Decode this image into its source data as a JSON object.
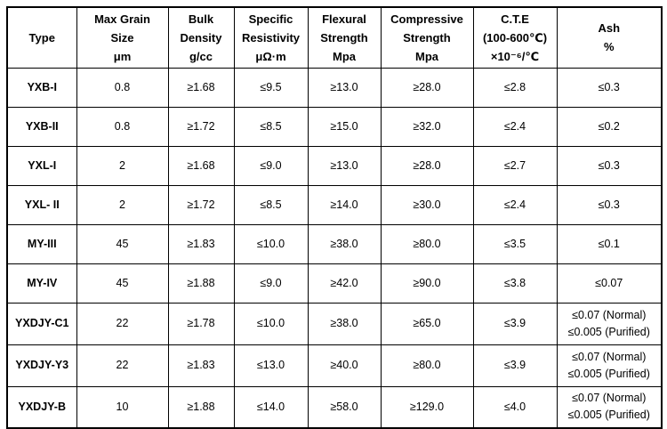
{
  "chart_data": {
    "type": "table",
    "title": "",
    "grid": "on",
    "columns": [
      {
        "id": "type",
        "label": "Type",
        "lines": [
          "Type"
        ]
      },
      {
        "id": "max_grain_size",
        "label": "Max Grain Size μm",
        "lines": [
          "Max Grain",
          "Size",
          "μm"
        ]
      },
      {
        "id": "bulk_density",
        "label": "Bulk Density g/cc",
        "lines": [
          "Bulk",
          "Density",
          "g/cc"
        ]
      },
      {
        "id": "specific_resistivity",
        "label": "Specific Resistivity μΩ·m",
        "lines": [
          "Specific",
          "Resistivity",
          "μΩ·m"
        ]
      },
      {
        "id": "flexural_strength",
        "label": "Flexural Strength Mpa",
        "lines": [
          "Flexural",
          "Strength",
          "Mpa"
        ]
      },
      {
        "id": "compressive_strength",
        "label": "Compressive Strength Mpa",
        "lines": [
          "Compressive",
          "Strength",
          "Mpa"
        ]
      },
      {
        "id": "cte",
        "label": "C.T.E (100-600℃) ×10⁻⁶/℃",
        "lines": [
          "C.T.E",
          "(100-600℃)",
          "×10⁻⁶/℃"
        ]
      },
      {
        "id": "ash",
        "label": "Ash %",
        "lines": [
          "Ash",
          "%"
        ]
      }
    ],
    "rows": [
      {
        "cells": [
          [
            "YXB-I"
          ],
          [
            "0.8"
          ],
          [
            "≥1.68"
          ],
          [
            "≤9.5"
          ],
          [
            "≥13.0"
          ],
          [
            "≥28.0"
          ],
          [
            "≤2.8"
          ],
          [
            "≤0.3"
          ]
        ]
      },
      {
        "cells": [
          [
            "YXB-II"
          ],
          [
            "0.8"
          ],
          [
            "≥1.72"
          ],
          [
            "≤8.5"
          ],
          [
            "≥15.0"
          ],
          [
            "≥32.0"
          ],
          [
            "≤2.4"
          ],
          [
            "≤0.2"
          ]
        ]
      },
      {
        "cells": [
          [
            "YXL-I"
          ],
          [
            "2"
          ],
          [
            "≥1.68"
          ],
          [
            "≤9.0"
          ],
          [
            "≥13.0"
          ],
          [
            "≥28.0"
          ],
          [
            "≤2.7"
          ],
          [
            "≤0.3"
          ]
        ]
      },
      {
        "cells": [
          [
            "YXL- II"
          ],
          [
            "2"
          ],
          [
            "≥1.72"
          ],
          [
            "≤8.5"
          ],
          [
            "≥14.0"
          ],
          [
            "≥30.0"
          ],
          [
            "≤2.4"
          ],
          [
            "≤0.3"
          ]
        ]
      },
      {
        "cells": [
          [
            "MY-III"
          ],
          [
            "45"
          ],
          [
            "≥1.83"
          ],
          [
            "≤10.0"
          ],
          [
            "≥38.0"
          ],
          [
            "≥80.0"
          ],
          [
            "≤3.5"
          ],
          [
            "≤0.1"
          ]
        ]
      },
      {
        "cells": [
          [
            "MY-IV"
          ],
          [
            "45"
          ],
          [
            "≥1.88"
          ],
          [
            "≤9.0"
          ],
          [
            "≥42.0"
          ],
          [
            "≥90.0"
          ],
          [
            "≤3.8"
          ],
          [
            "≤0.07"
          ]
        ]
      },
      {
        "cells": [
          [
            "YXDJY-C1"
          ],
          [
            "22"
          ],
          [
            "≥1.78"
          ],
          [
            "≤10.0"
          ],
          [
            "≥38.0"
          ],
          [
            "≥65.0"
          ],
          [
            "≤3.9"
          ],
          [
            "≤0.07 (Normal)",
            "≤0.005 (Purified)"
          ]
        ]
      },
      {
        "cells": [
          [
            "YXDJY-Y3"
          ],
          [
            "22"
          ],
          [
            "≥1.83"
          ],
          [
            "≤13.0"
          ],
          [
            "≥40.0"
          ],
          [
            "≥80.0"
          ],
          [
            "≤3.9"
          ],
          [
            "≤0.07 (Normal)",
            "≤0.005 (Purified)"
          ]
        ]
      },
      {
        "cells": [
          [
            "YXDJY-B"
          ],
          [
            "10"
          ],
          [
            "≥1.88"
          ],
          [
            "≤14.0"
          ],
          [
            "≥58.0"
          ],
          [
            "≥129.0"
          ],
          [
            "≤4.0"
          ],
          [
            "≤0.07 (Normal)",
            "≤0.005 (Purified)"
          ]
        ]
      }
    ],
    "colors": {
      "border": "#000000",
      "text": "#000000",
      "background": "#ffffff"
    }
  }
}
